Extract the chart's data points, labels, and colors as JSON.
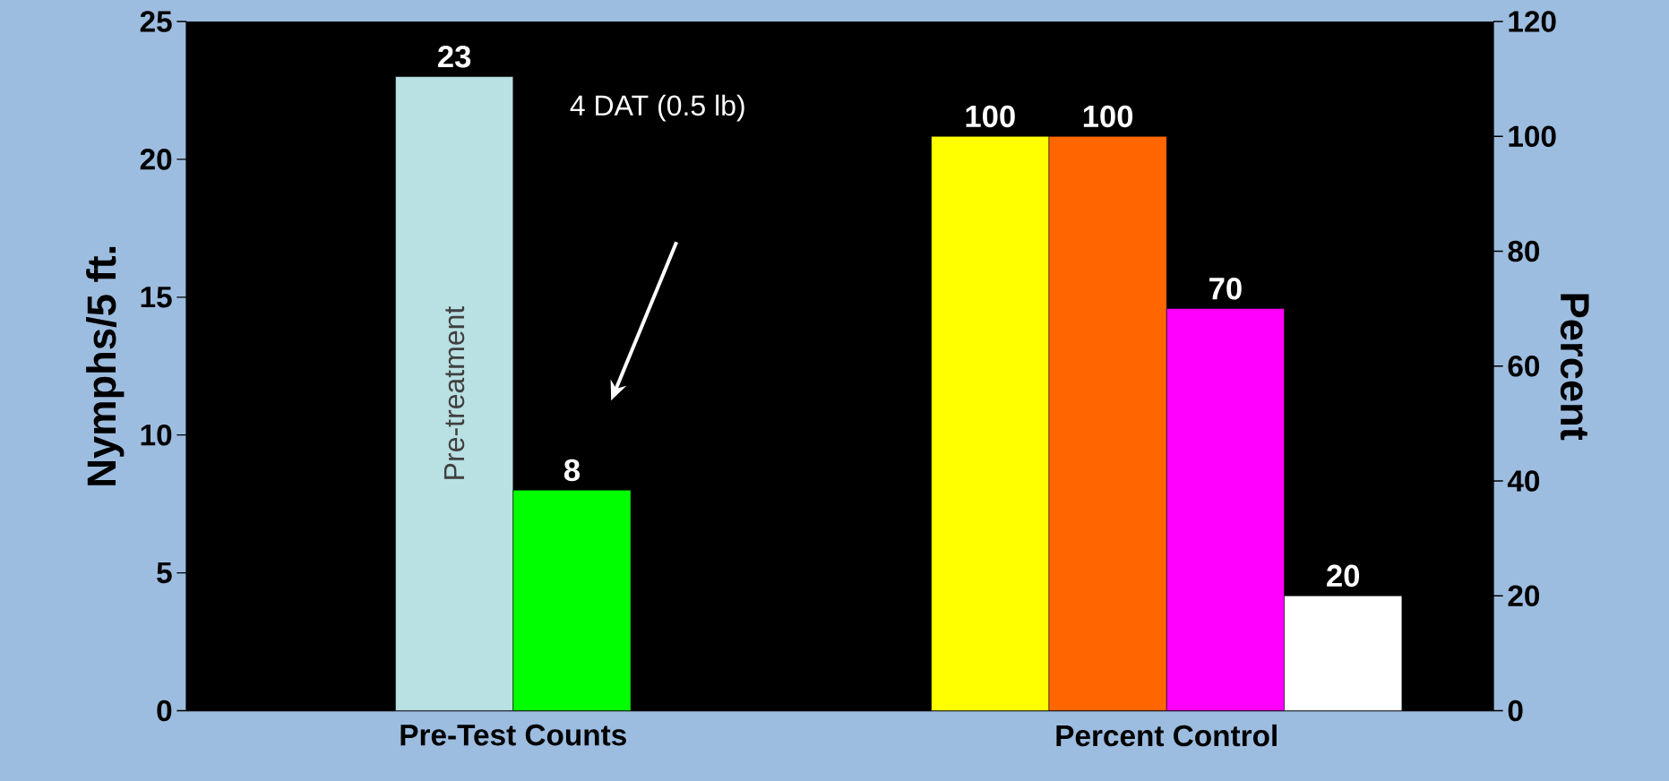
{
  "chart_data": {
    "type": "bar",
    "ylabel": "Nymphs/5 ft.",
    "y2label": "Percent",
    "categories": [
      "Pre-Test Counts",
      "Percent Control"
    ],
    "series": [
      {
        "name": "Pre-treatment",
        "color": "#b9e0e3",
        "values": [
          23,
          null
        ]
      },
      {
        "color": "#00ff00",
        "values": [
          8,
          null
        ]
      },
      {
        "color": "#ffff00",
        "values": [
          null,
          100
        ],
        "axis": "y2"
      },
      {
        "color": "#ff6600",
        "values": [
          null,
          100
        ],
        "axis": "y2"
      },
      {
        "color": "#ff00ff",
        "values": [
          null,
          70
        ],
        "axis": "y2"
      },
      {
        "color": "#ffffff",
        "values": [
          null,
          20
        ],
        "axis": "y2"
      }
    ],
    "ylim": [
      0,
      25
    ],
    "yticks": [
      0,
      5,
      10,
      15,
      20,
      25
    ],
    "y2lim": [
      0,
      120
    ],
    "y2ticks": [
      0,
      20,
      40,
      60,
      80,
      100,
      120
    ],
    "data_labels": true,
    "annotations": [
      "4 DAT (0.5 lb)"
    ]
  }
}
